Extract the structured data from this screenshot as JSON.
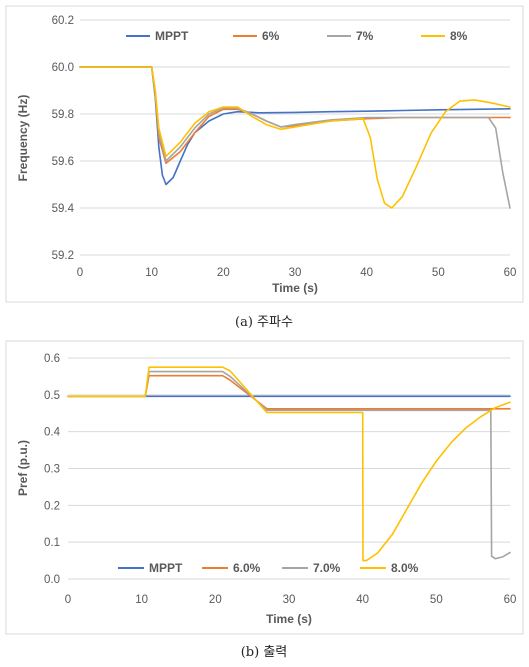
{
  "chart_data": [
    {
      "type": "line",
      "title": "",
      "caption": "(a) 주파수",
      "xlabel": "Time (s)",
      "ylabel": "Frequency (Hz)",
      "xlim": [
        0,
        60
      ],
      "ylim": [
        59.2,
        60.2
      ],
      "xticks": [
        0,
        10,
        20,
        30,
        40,
        50,
        60
      ],
      "yticks": [
        "59.2",
        "59.4",
        "59.6",
        "59.8",
        "60.0",
        "60.2"
      ],
      "grid": "horizontal",
      "legend_position": "top",
      "series": [
        {
          "name": "MPPT",
          "color": "#4472c4",
          "x": [
            0,
            10,
            10.5,
            11,
            11.5,
            12,
            13,
            14,
            15,
            16,
            18,
            20,
            22,
            25,
            30,
            35,
            40,
            45,
            50,
            55,
            60
          ],
          "y": [
            60.0,
            60.0,
            59.87,
            59.66,
            59.54,
            59.5,
            59.53,
            59.6,
            59.67,
            59.72,
            59.77,
            59.8,
            59.81,
            59.805,
            59.807,
            59.81,
            59.812,
            59.815,
            59.818,
            59.82,
            59.822
          ]
        },
        {
          "name": "6%",
          "color": "#ed7d31",
          "x": [
            0,
            10,
            10.5,
            11,
            12,
            14,
            16,
            18,
            20,
            22,
            24,
            26,
            28,
            30,
            35,
            40,
            45,
            50,
            55,
            60
          ],
          "y": [
            60.0,
            60.0,
            59.88,
            59.7,
            59.59,
            59.64,
            59.72,
            59.79,
            59.82,
            59.82,
            59.8,
            59.77,
            59.745,
            59.75,
            59.77,
            59.78,
            59.785,
            59.785,
            59.785,
            59.785
          ]
        },
        {
          "name": "7%",
          "color": "#a5a5a5",
          "x": [
            0,
            10,
            10.5,
            11,
            12,
            14,
            16,
            18,
            20,
            22,
            24,
            26,
            28,
            30,
            35,
            40,
            45,
            50,
            55,
            57,
            58,
            59,
            60
          ],
          "y": [
            60.0,
            60.0,
            59.89,
            59.72,
            59.6,
            59.66,
            59.74,
            59.8,
            59.825,
            59.825,
            59.8,
            59.77,
            59.745,
            59.755,
            59.775,
            59.785,
            59.785,
            59.785,
            59.785,
            59.785,
            59.74,
            59.55,
            59.4
          ]
        },
        {
          "name": "8%",
          "color": "#ffc000",
          "x": [
            0,
            10,
            10.5,
            11,
            12,
            14,
            16,
            18,
            20,
            22,
            24,
            26,
            28,
            30,
            35,
            39.5,
            40.5,
            41.5,
            42.5,
            43.5,
            45,
            47,
            49,
            51,
            53,
            55,
            57,
            60
          ],
          "y": [
            60.0,
            60.0,
            59.9,
            59.74,
            59.62,
            59.68,
            59.76,
            59.81,
            59.83,
            59.83,
            59.79,
            59.755,
            59.735,
            59.745,
            59.77,
            59.78,
            59.7,
            59.52,
            59.42,
            59.4,
            59.45,
            59.58,
            59.72,
            59.81,
            59.855,
            59.86,
            59.85,
            59.83
          ]
        }
      ]
    },
    {
      "type": "line",
      "title": "",
      "caption": "(b) 출력",
      "xlabel": "Time (s)",
      "ylabel": "Pref (p.u.)",
      "xlim": [
        0,
        60
      ],
      "ylim": [
        0,
        0.6
      ],
      "xticks": [
        0,
        10,
        20,
        30,
        40,
        50,
        60
      ],
      "yticks": [
        "0.0",
        "0.1",
        "0.2",
        "0.3",
        "0.4",
        "0.5",
        "0.6"
      ],
      "grid": "horizontal",
      "legend_position": "bottom",
      "series": [
        {
          "name": "MPPT",
          "color": "#4472c4",
          "x": [
            0,
            60
          ],
          "y": [
            0.496,
            0.496
          ]
        },
        {
          "name": "6.0%",
          "color": "#ed7d31",
          "x": [
            0,
            10.5,
            11,
            21,
            22,
            27,
            30,
            60
          ],
          "y": [
            0.496,
            0.496,
            0.552,
            0.552,
            0.54,
            0.462,
            0.462,
            0.462
          ]
        },
        {
          "name": "7.0%",
          "color": "#a5a5a5",
          "x": [
            0,
            10.5,
            11,
            21,
            22,
            27,
            30,
            57.4,
            57.5,
            58,
            59,
            60
          ],
          "y": [
            0.496,
            0.496,
            0.563,
            0.563,
            0.55,
            0.458,
            0.458,
            0.458,
            0.062,
            0.055,
            0.06,
            0.072
          ]
        },
        {
          "name": "8.0%",
          "color": "#ffc000",
          "x": [
            0,
            10.5,
            11,
            21,
            22,
            27,
            30,
            40,
            40.05,
            40.5,
            42,
            44,
            46,
            48,
            50,
            52,
            54,
            56,
            58,
            60
          ],
          "y": [
            0.496,
            0.496,
            0.575,
            0.575,
            0.565,
            0.452,
            0.452,
            0.452,
            0.05,
            0.05,
            0.07,
            0.12,
            0.19,
            0.26,
            0.32,
            0.37,
            0.41,
            0.44,
            0.465,
            0.48
          ]
        }
      ]
    }
  ]
}
